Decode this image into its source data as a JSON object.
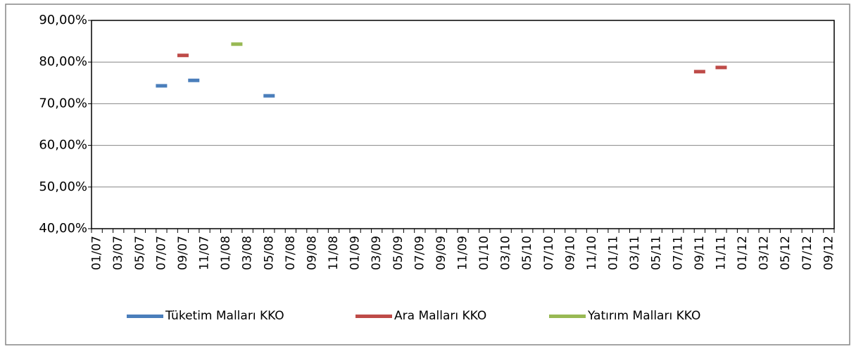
{
  "chart_data": {
    "type": "line",
    "marker": "dash",
    "categories": [
      "01/07",
      null,
      "03/07",
      null,
      "05/07",
      null,
      "07/07",
      null,
      "09/07",
      null,
      "11/07",
      null,
      "01/08",
      null,
      "03/08",
      null,
      "05/08",
      null,
      "07/08",
      null,
      "09/08",
      null,
      "11/08",
      null,
      "01/09",
      null,
      "03/09",
      null,
      "05/09",
      null,
      "07/09",
      null,
      "09/09",
      null,
      "11/09",
      null,
      "01/10",
      null,
      "03/10",
      null,
      "05/10",
      null,
      "07/10",
      null,
      "09/10",
      null,
      "11/10",
      null,
      "01/11",
      null,
      "03/11",
      null,
      "05/11",
      null,
      "07/11",
      null,
      "09/11",
      null,
      "11/11",
      null,
      "01/12",
      null,
      "03/12",
      null,
      "05/12",
      null,
      "07/12",
      null,
      "09/12"
    ],
    "series": [
      {
        "name": "Tüketim Malları KKO",
        "color": "#4a7ebb",
        "values": [
          null,
          null,
          null,
          null,
          null,
          null,
          74.3,
          null,
          null,
          75.6,
          null,
          null,
          null,
          null,
          null,
          null,
          71.9,
          null,
          null,
          null,
          null,
          null,
          null,
          null,
          null,
          null,
          null,
          null,
          null,
          null,
          null,
          null,
          null,
          null,
          null,
          null,
          null,
          null,
          null,
          null,
          null,
          null,
          null,
          null,
          null,
          null,
          null,
          null,
          null,
          null,
          null,
          null,
          null,
          null,
          null,
          null,
          null,
          null,
          null,
          null,
          null,
          null,
          null,
          null,
          null,
          null,
          null,
          null,
          null
        ]
      },
      {
        "name": "Ara Malları KKO",
        "color": "#be4b48",
        "values": [
          null,
          null,
          null,
          null,
          null,
          null,
          null,
          null,
          81.6,
          null,
          null,
          null,
          null,
          null,
          null,
          null,
          null,
          null,
          null,
          null,
          null,
          null,
          null,
          null,
          null,
          null,
          null,
          null,
          null,
          null,
          null,
          null,
          null,
          null,
          null,
          null,
          null,
          null,
          null,
          null,
          null,
          null,
          null,
          null,
          null,
          null,
          null,
          null,
          null,
          null,
          null,
          null,
          null,
          null,
          null,
          null,
          77.7,
          null,
          78.7,
          null,
          null,
          null,
          null,
          null,
          null,
          null,
          null,
          null,
          null
        ]
      },
      {
        "name": "Yatırım Malları KKO",
        "color": "#98b954",
        "values": [
          null,
          null,
          null,
          null,
          null,
          null,
          null,
          null,
          null,
          null,
          null,
          null,
          null,
          84.3,
          null,
          null,
          null,
          null,
          null,
          null,
          null,
          null,
          null,
          null,
          null,
          null,
          null,
          null,
          null,
          null,
          null,
          null,
          null,
          null,
          null,
          null,
          null,
          null,
          null,
          null,
          null,
          null,
          null,
          null,
          null,
          null,
          null,
          null,
          null,
          null,
          null,
          null,
          null,
          null,
          null,
          null,
          null,
          null,
          null,
          null,
          null,
          null,
          null,
          null,
          null,
          null,
          null,
          null,
          null
        ]
      }
    ],
    "ylim": [
      40,
      90
    ],
    "yticks": [
      {
        "value": 40,
        "label": "40,00%"
      },
      {
        "value": 50,
        "label": "50,00%"
      },
      {
        "value": 60,
        "label": "60,00%"
      },
      {
        "value": 70,
        "label": "70,00%"
      },
      {
        "value": 80,
        "label": "80,00%"
      },
      {
        "value": 90,
        "label": "90,00%"
      }
    ],
    "grid": true,
    "legend": "bottom"
  }
}
